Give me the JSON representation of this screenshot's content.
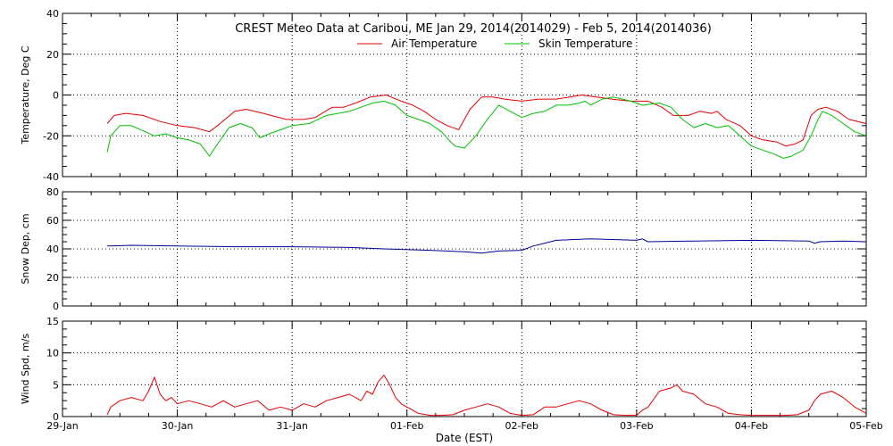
{
  "title": "CREST Meteo Data at Caribou, ME   Jan 29, 2014(2014029) - Feb  5, 2014(2014036)",
  "xlabel": "Date (EST)",
  "x_ticks": [
    "29-Jan",
    "30-Jan",
    "31-Jan",
    "01-Feb",
    "02-Feb",
    "03-Feb",
    "04-Feb",
    "05-Feb"
  ],
  "colors": {
    "air": "#e00000",
    "skin": "#00c000",
    "snow": "#000090",
    "wind": "#e00000"
  },
  "chart_data": [
    {
      "type": "line",
      "ylabel": "Temperature, Deg C",
      "ylim": [
        -40,
        40
      ],
      "y_ticks": [
        "-40",
        "-20",
        "0",
        "20",
        "40"
      ],
      "xlim": [
        0,
        7
      ],
      "legend": "top-center",
      "grid": true,
      "series": [
        {
          "name": "Air Temperature",
          "x": [
            0.39,
            0.45,
            0.55,
            0.7,
            0.85,
            1.0,
            1.15,
            1.28,
            1.35,
            1.5,
            1.6,
            1.75,
            1.95,
            2.1,
            2.2,
            2.35,
            2.45,
            2.55,
            2.68,
            2.82,
            2.95,
            3.05,
            3.15,
            3.2,
            3.25,
            3.35,
            3.45,
            3.55,
            3.65,
            3.75,
            3.85,
            4.0,
            4.15,
            4.3,
            4.42,
            4.52,
            4.65,
            4.78,
            4.95,
            5.1,
            5.22,
            5.32,
            5.45,
            5.55,
            5.65,
            5.7,
            5.78,
            5.9,
            6.0,
            6.1,
            6.22,
            6.3,
            6.38,
            6.45,
            6.52,
            6.58,
            6.65,
            6.75,
            6.85,
            7.0
          ],
          "y": [
            -14,
            -10,
            -9,
            -10,
            -13,
            -15,
            -16,
            -18,
            -15,
            -8,
            -7,
            -9,
            -12,
            -12,
            -11,
            -6,
            -6,
            -4,
            -1,
            0,
            -3,
            -5,
            -8,
            -10,
            -12,
            -15,
            -17,
            -7,
            -1,
            -1,
            -2,
            -3,
            -2,
            -2,
            -1,
            0,
            -1,
            -2,
            -3,
            -3,
            -6,
            -10,
            -10,
            -8,
            -9,
            -8,
            -12,
            -15,
            -20,
            -22,
            -23,
            -25,
            -24,
            -22,
            -10,
            -7,
            -6,
            -8,
            -12,
            -14
          ],
          "color": "#e00000"
        },
        {
          "name": "Skin Temperature",
          "x": [
            0.39,
            0.42,
            0.5,
            0.6,
            0.72,
            0.8,
            0.9,
            1.0,
            1.1,
            1.2,
            1.28,
            1.35,
            1.45,
            1.55,
            1.65,
            1.72,
            1.8,
            1.9,
            2.0,
            2.15,
            2.3,
            2.4,
            2.5,
            2.6,
            2.7,
            2.8,
            2.9,
            3.0,
            3.1,
            3.2,
            3.3,
            3.38,
            3.42,
            3.5,
            3.6,
            3.7,
            3.8,
            3.9,
            4.0,
            4.1,
            4.2,
            4.3,
            4.4,
            4.5,
            4.55,
            4.6,
            4.7,
            4.8,
            4.95,
            5.05,
            5.2,
            5.3,
            5.4,
            5.5,
            5.6,
            5.7,
            5.8,
            5.9,
            6.0,
            6.1,
            6.2,
            6.28,
            6.35,
            6.45,
            6.52,
            6.58,
            6.62,
            6.7,
            6.8,
            6.9,
            7.0
          ],
          "y": [
            -28,
            -20,
            -15,
            -15,
            -18,
            -20,
            -19,
            -21,
            -22,
            -24,
            -30,
            -24,
            -16,
            -14,
            -16,
            -21,
            -19,
            -17,
            -15,
            -14,
            -10,
            -9,
            -8,
            -6,
            -4,
            -3,
            -5,
            -10,
            -12,
            -14,
            -18,
            -23,
            -25,
            -26,
            -20,
            -12,
            -5,
            -8,
            -11,
            -9,
            -8,
            -5,
            -5,
            -4,
            -3,
            -5,
            -2,
            -1,
            -3,
            -5,
            -4,
            -6,
            -12,
            -16,
            -14,
            -16,
            -15,
            -20,
            -25,
            -27,
            -29,
            -31,
            -30,
            -27,
            -20,
            -12,
            -8,
            -10,
            -14,
            -18,
            -20
          ],
          "color": "#00c000"
        }
      ]
    },
    {
      "type": "line",
      "ylabel": "Snow Dep, cm",
      "ylim": [
        0,
        80
      ],
      "y_ticks": [
        "0",
        "20",
        "40",
        "60",
        "80"
      ],
      "xlim": [
        0,
        7
      ],
      "grid": true,
      "series": [
        {
          "x": [
            0.39,
            0.6,
            1.0,
            1.5,
            2.0,
            2.5,
            2.8,
            3.2,
            3.5,
            3.65,
            3.8,
            4.0,
            4.1,
            4.2,
            4.3,
            4.6,
            5.0,
            5.05,
            5.1,
            5.5,
            6.0,
            6.5,
            6.55,
            6.6,
            6.8,
            7.0
          ],
          "y": [
            42,
            42.5,
            42,
            41.5,
            41.5,
            41,
            40,
            39,
            38,
            37,
            38.5,
            39,
            42,
            44,
            46,
            47,
            46,
            47,
            45,
            45.5,
            46,
            45.5,
            44,
            45,
            45.5,
            45
          ],
          "color": "#000090"
        }
      ]
    },
    {
      "type": "line",
      "ylabel": "Wind Spd, m/s",
      "ylim": [
        0,
        15
      ],
      "y_ticks": [
        "0",
        "5",
        "10",
        "15"
      ],
      "xlim": [
        0,
        7
      ],
      "grid": true,
      "series": [
        {
          "x": [
            0.39,
            0.42,
            0.5,
            0.6,
            0.7,
            0.75,
            0.8,
            0.85,
            0.9,
            0.95,
            1.0,
            1.1,
            1.2,
            1.3,
            1.4,
            1.5,
            1.6,
            1.7,
            1.8,
            1.9,
            2.0,
            2.1,
            2.2,
            2.3,
            2.4,
            2.5,
            2.6,
            2.65,
            2.7,
            2.75,
            2.8,
            2.85,
            2.9,
            2.95,
            3.0,
            3.1,
            3.2,
            3.3,
            3.4,
            3.5,
            3.6,
            3.7,
            3.8,
            3.9,
            4.0,
            4.1,
            4.2,
            4.3,
            4.4,
            4.5,
            4.6,
            4.7,
            4.8,
            4.9,
            5.0,
            5.05,
            5.1,
            5.2,
            5.3,
            5.35,
            5.4,
            5.5,
            5.6,
            5.7,
            5.8,
            5.9,
            6.0,
            6.1,
            6.2,
            6.3,
            6.4,
            6.5,
            6.55,
            6.6,
            6.7,
            6.8,
            6.9,
            7.0
          ],
          "y": [
            0.3,
            1.5,
            2.5,
            3,
            2.5,
            4,
            6.2,
            3.5,
            2.5,
            3,
            2,
            2.5,
            2,
            1.5,
            2.5,
            1.5,
            2,
            2.5,
            1,
            1.5,
            1,
            2,
            1.5,
            2.5,
            3,
            3.5,
            2.5,
            4,
            3.5,
            5.5,
            6.5,
            5,
            3,
            2,
            1.5,
            0.5,
            0.2,
            0.2,
            0.3,
            1,
            1.5,
            2,
            1.5,
            0.5,
            0.2,
            0.3,
            1.5,
            1.5,
            2,
            2.5,
            2,
            1,
            0.3,
            0.2,
            0.2,
            1,
            1.5,
            4,
            4.5,
            5,
            4,
            3.5,
            2,
            1.5,
            0.5,
            0.3,
            0.2,
            0.2,
            0.2,
            0.2,
            0.3,
            1,
            2.5,
            3.5,
            4,
            3,
            1.5,
            0.5
          ],
          "color": "#e00000"
        }
      ]
    }
  ]
}
